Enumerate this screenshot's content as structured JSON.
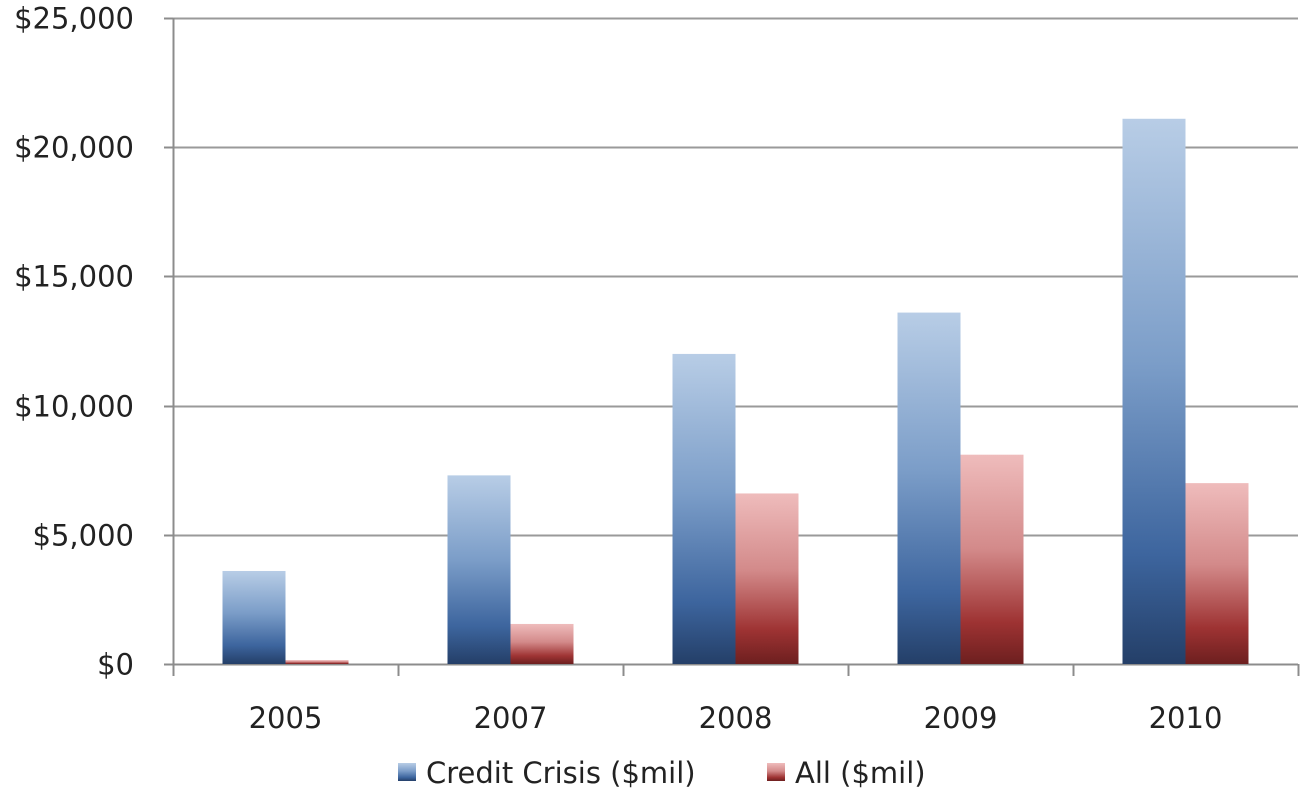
{
  "chart_data": {
    "type": "bar",
    "categories": [
      "2005",
      "2007",
      "2008",
      "2009",
      "2010"
    ],
    "series": [
      {
        "name": "Credit Crisis ($mil)",
        "values": [
          3600,
          7300,
          12000,
          13600,
          21100
        ],
        "color": "#3a64a0"
      },
      {
        "name": "All ($mil)",
        "values": [
          150,
          1550,
          6600,
          8100,
          7000
        ],
        "color": "#a23c3c"
      }
    ],
    "ylim": [
      0,
      25000
    ],
    "yticks": [
      0,
      5000,
      10000,
      15000,
      20000,
      25000
    ],
    "ytick_labels": [
      "$0",
      "$5,000",
      "$10,000",
      "$15,000",
      "$20,000",
      "$25,000"
    ],
    "grid": true,
    "legend_position": "bottom",
    "title": "",
    "xlabel": "",
    "ylabel": ""
  }
}
